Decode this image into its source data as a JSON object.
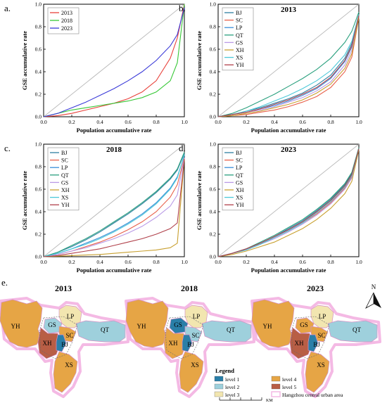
{
  "axis_common": {
    "xlabel": "Population accumulative rate",
    "ylabel": "GSE accumulative rate",
    "xticks": [
      "0.0",
      "0.2",
      "0.4",
      "0.6",
      "0.8",
      "1.0"
    ],
    "yticks": [
      "0.0",
      "0.2",
      "0.4",
      "0.6",
      "0.8",
      "1.0"
    ]
  },
  "panels": [
    {
      "letter": "a.",
      "title": "",
      "legend": [
        "2013",
        "2018",
        "2023"
      ]
    },
    {
      "letter": "b.",
      "title": "2013",
      "legend": [
        "BJ",
        "SC",
        "LP",
        "QT",
        "GS",
        "XH",
        "XS",
        "YH"
      ]
    },
    {
      "letter": "c.",
      "title": "2018",
      "legend": [
        "BJ",
        "SC",
        "LP",
        "QT",
        "GS",
        "XH",
        "XS",
        "YH"
      ]
    },
    {
      "letter": "d.",
      "title": "2023",
      "legend": [
        "BJ",
        "SC",
        "LP",
        "QT",
        "GS",
        "XH",
        "XS",
        "YH"
      ]
    }
  ],
  "colors": {
    "2013": "#e8413a",
    "2018": "#37c837",
    "2023": "#3a3ad8",
    "BJ": "#2e7fa0",
    "SC": "#e8604a",
    "LP": "#3a8fd8",
    "QT": "#2aa07e",
    "GS": "#b99ae6",
    "XH": "#c8a030",
    "XS": "#4cc8d8",
    "YH": "#b0404a",
    "level1": "#2a7fa8",
    "level2": "#9ed0dc",
    "level3": "#f2e6b0",
    "level4": "#e6a545",
    "level5": "#b85e45",
    "equality": "#b8b8b8"
  },
  "chart_data": [
    {
      "type": "line",
      "panel": "a",
      "title": "",
      "xlabel": "Population accumulative rate",
      "ylabel": "GSE accumulative rate",
      "xlim": [
        0,
        1
      ],
      "ylim": [
        0,
        1
      ],
      "x": [
        0,
        0.1,
        0.2,
        0.3,
        0.4,
        0.5,
        0.6,
        0.7,
        0.8,
        0.9,
        0.95,
        1.0
      ],
      "series": [
        {
          "name": "2013",
          "values": [
            0,
            0.01,
            0.03,
            0.06,
            0.09,
            0.12,
            0.16,
            0.22,
            0.32,
            0.52,
            0.7,
            1.0
          ]
        },
        {
          "name": "2018",
          "values": [
            0,
            0.03,
            0.06,
            0.08,
            0.1,
            0.12,
            0.14,
            0.17,
            0.22,
            0.32,
            0.48,
            1.0
          ]
        },
        {
          "name": "2023",
          "values": [
            0,
            0.03,
            0.08,
            0.13,
            0.19,
            0.25,
            0.32,
            0.4,
            0.5,
            0.63,
            0.73,
            0.97
          ]
        }
      ]
    },
    {
      "type": "line",
      "panel": "b",
      "title": "2013",
      "xlabel": "Population accumulative rate",
      "ylabel": "GSE accumulative rate",
      "xlim": [
        0,
        1
      ],
      "ylim": [
        0,
        1
      ],
      "x": [
        0,
        0.1,
        0.2,
        0.3,
        0.4,
        0.5,
        0.6,
        0.7,
        0.8,
        0.9,
        0.95,
        1.0
      ],
      "series": [
        {
          "name": "BJ",
          "values": [
            0,
            0.02,
            0.05,
            0.08,
            0.12,
            0.16,
            0.21,
            0.28,
            0.37,
            0.52,
            0.65,
            0.9
          ]
        },
        {
          "name": "SC",
          "values": [
            0,
            0.01,
            0.02,
            0.04,
            0.06,
            0.09,
            0.13,
            0.18,
            0.26,
            0.4,
            0.53,
            0.88
          ]
        },
        {
          "name": "LP",
          "values": [
            0,
            0.02,
            0.04,
            0.07,
            0.1,
            0.14,
            0.19,
            0.25,
            0.34,
            0.49,
            0.62,
            0.9
          ]
        },
        {
          "name": "QT",
          "values": [
            0,
            0.03,
            0.08,
            0.14,
            0.2,
            0.27,
            0.34,
            0.42,
            0.52,
            0.66,
            0.76,
            0.93
          ]
        },
        {
          "name": "GS",
          "values": [
            0,
            0.02,
            0.04,
            0.06,
            0.09,
            0.13,
            0.17,
            0.23,
            0.31,
            0.46,
            0.59,
            0.89
          ]
        },
        {
          "name": "XH",
          "values": [
            0,
            0.01,
            0.03,
            0.05,
            0.08,
            0.11,
            0.15,
            0.21,
            0.29,
            0.43,
            0.56,
            0.88
          ]
        },
        {
          "name": "XS",
          "values": [
            0,
            0.02,
            0.05,
            0.09,
            0.14,
            0.19,
            0.25,
            0.32,
            0.41,
            0.55,
            0.67,
            0.91
          ]
        },
        {
          "name": "YH",
          "values": [
            0,
            0.02,
            0.04,
            0.07,
            0.11,
            0.15,
            0.2,
            0.26,
            0.35,
            0.5,
            0.63,
            0.9
          ]
        }
      ]
    },
    {
      "type": "line",
      "panel": "c",
      "title": "2018",
      "xlabel": "Population accumulative rate",
      "ylabel": "GSE accumulative rate",
      "xlim": [
        0,
        1
      ],
      "ylim": [
        0,
        1
      ],
      "x": [
        0,
        0.1,
        0.2,
        0.3,
        0.4,
        0.5,
        0.6,
        0.7,
        0.8,
        0.9,
        0.95,
        1.0
      ],
      "series": [
        {
          "name": "BJ",
          "values": [
            0,
            0.04,
            0.09,
            0.15,
            0.22,
            0.3,
            0.38,
            0.47,
            0.57,
            0.69,
            0.77,
            0.92
          ]
        },
        {
          "name": "SC",
          "values": [
            0,
            0.02,
            0.05,
            0.09,
            0.13,
            0.18,
            0.24,
            0.31,
            0.4,
            0.53,
            0.64,
            0.88
          ]
        },
        {
          "name": "LP",
          "values": [
            0,
            0.03,
            0.07,
            0.12,
            0.17,
            0.23,
            0.3,
            0.38,
            0.48,
            0.61,
            0.71,
            0.9
          ]
        },
        {
          "name": "QT",
          "values": [
            0,
            0.04,
            0.1,
            0.16,
            0.23,
            0.31,
            0.39,
            0.48,
            0.58,
            0.7,
            0.78,
            0.93
          ]
        },
        {
          "name": "GS",
          "values": [
            0,
            0.02,
            0.05,
            0.08,
            0.12,
            0.16,
            0.21,
            0.27,
            0.35,
            0.45,
            0.55,
            0.88
          ]
        },
        {
          "name": "XH",
          "values": [
            0,
            0.005,
            0.01,
            0.015,
            0.02,
            0.03,
            0.04,
            0.05,
            0.06,
            0.08,
            0.12,
            0.87
          ]
        },
        {
          "name": "XS",
          "values": [
            0,
            0.03,
            0.07,
            0.11,
            0.16,
            0.22,
            0.29,
            0.37,
            0.47,
            0.6,
            0.7,
            0.91
          ]
        },
        {
          "name": "YH",
          "values": [
            0,
            0.01,
            0.03,
            0.05,
            0.07,
            0.1,
            0.13,
            0.16,
            0.2,
            0.25,
            0.3,
            0.87
          ]
        }
      ]
    },
    {
      "type": "line",
      "panel": "d",
      "title": "2023",
      "xlabel": "Population accumulative rate",
      "ylabel": "GSE accumulative rate",
      "xlim": [
        0,
        1
      ],
      "ylim": [
        0,
        1
      ],
      "x": [
        0,
        0.1,
        0.2,
        0.3,
        0.4,
        0.5,
        0.6,
        0.7,
        0.8,
        0.9,
        0.95,
        1.0
      ],
      "series": [
        {
          "name": "BJ",
          "values": [
            0,
            0.03,
            0.07,
            0.12,
            0.18,
            0.25,
            0.32,
            0.41,
            0.51,
            0.64,
            0.74,
            0.96
          ]
        },
        {
          "name": "SC",
          "values": [
            0,
            0.03,
            0.06,
            0.11,
            0.17,
            0.23,
            0.3,
            0.38,
            0.48,
            0.61,
            0.71,
            0.96
          ]
        },
        {
          "name": "LP",
          "values": [
            0,
            0.03,
            0.07,
            0.12,
            0.18,
            0.24,
            0.31,
            0.4,
            0.5,
            0.63,
            0.73,
            0.96
          ]
        },
        {
          "name": "QT",
          "values": [
            0,
            0.03,
            0.07,
            0.13,
            0.19,
            0.26,
            0.33,
            0.42,
            0.52,
            0.65,
            0.75,
            0.97
          ]
        },
        {
          "name": "GS",
          "values": [
            0,
            0.03,
            0.06,
            0.11,
            0.16,
            0.22,
            0.29,
            0.37,
            0.47,
            0.6,
            0.7,
            0.96
          ]
        },
        {
          "name": "XH",
          "values": [
            0,
            0.02,
            0.05,
            0.09,
            0.13,
            0.19,
            0.25,
            0.33,
            0.43,
            0.56,
            0.67,
            0.95
          ]
        },
        {
          "name": "XS",
          "values": [
            0,
            0.03,
            0.06,
            0.11,
            0.17,
            0.23,
            0.3,
            0.39,
            0.49,
            0.62,
            0.72,
            0.96
          ]
        },
        {
          "name": "YH",
          "values": [
            0,
            0.03,
            0.07,
            0.12,
            0.18,
            0.24,
            0.31,
            0.4,
            0.5,
            0.63,
            0.73,
            0.96
          ]
        }
      ]
    }
  ],
  "panel_e": {
    "letter": "e.",
    "north": "N",
    "maps": [
      {
        "year": "2013",
        "levels": {
          "YH": 4,
          "LP": 3,
          "GS": 2,
          "SC": 4,
          "QT": 2,
          "XH": 5,
          "BJ": 1,
          "XS": 4
        }
      },
      {
        "year": "2018",
        "levels": {
          "YH": 4,
          "LP": 3,
          "GS": 1,
          "SC": 2,
          "QT": 2,
          "XH": 4,
          "BJ": 1,
          "XS": 4
        }
      },
      {
        "year": "2023",
        "levels": {
          "YH": 4,
          "LP": 3,
          "GS": 4,
          "SC": 4,
          "QT": 2,
          "XH": 5,
          "BJ": 1,
          "XS": 4
        }
      }
    ],
    "legend": {
      "title": "Legend",
      "items": [
        {
          "label": "level 1",
          "key": "level1"
        },
        {
          "label": "level 4",
          "key": "level4"
        },
        {
          "label": "level 2",
          "key": "level2"
        },
        {
          "label": "level 5",
          "key": "level5"
        },
        {
          "label": "level 3",
          "key": "level3"
        },
        {
          "label": "Hangzhou central urban area",
          "key": "outline"
        }
      ],
      "scale_unit": "KM"
    }
  }
}
